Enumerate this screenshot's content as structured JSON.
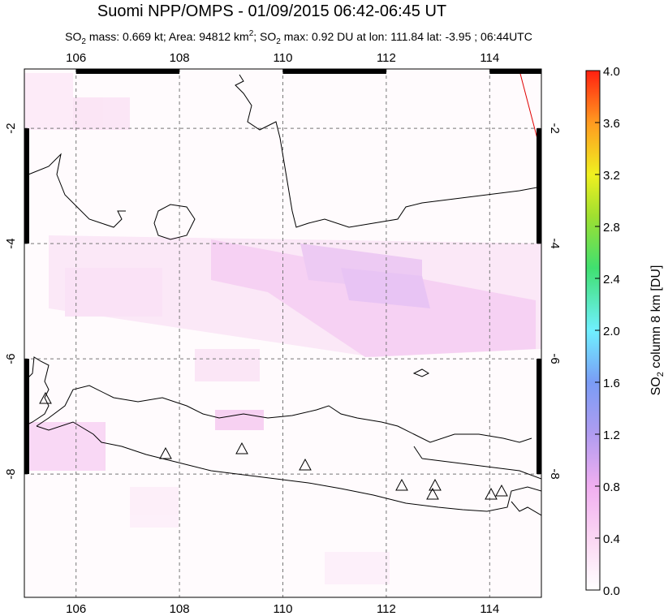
{
  "header": {
    "title": "Suomi NPP/OMPS - 01/09/2015 06:42-06:45 UT",
    "subtitle": [
      "SO",
      "2",
      " mass: 0.669 kt; Area: 94812 km",
      "2",
      "; SO",
      "2",
      " max: 0.92 DU at lon: 111.84 lat: -3.95 ; 06:44UTC"
    ]
  },
  "map": {
    "lon_range": [
      105,
      115
    ],
    "lat_range": [
      -10.14,
      -0.97
    ],
    "lon_ticks": [
      106,
      108,
      110,
      112,
      114
    ],
    "lat_ticks": [
      -2,
      -4,
      -6,
      -8
    ],
    "grid": true
  },
  "colorbar": {
    "label": [
      "SO",
      "2",
      " column 8 km [DU]"
    ],
    "range": [
      0,
      4
    ],
    "ticks": [
      {
        "value": 0,
        "label": "0.0"
      },
      {
        "value": 0.4,
        "label": "0.4"
      },
      {
        "value": 0.8,
        "label": "0.8"
      },
      {
        "value": 1.2,
        "label": "1.2"
      },
      {
        "value": 1.6,
        "label": "1.6"
      },
      {
        "value": 2,
        "label": "2.0"
      },
      {
        "value": 2.4,
        "label": "2.4"
      },
      {
        "value": 2.8,
        "label": "2.8"
      },
      {
        "value": 3.2,
        "label": "3.2"
      },
      {
        "value": 3.6,
        "label": "3.6"
      },
      {
        "value": 4,
        "label": "4.0"
      }
    ]
  }
}
